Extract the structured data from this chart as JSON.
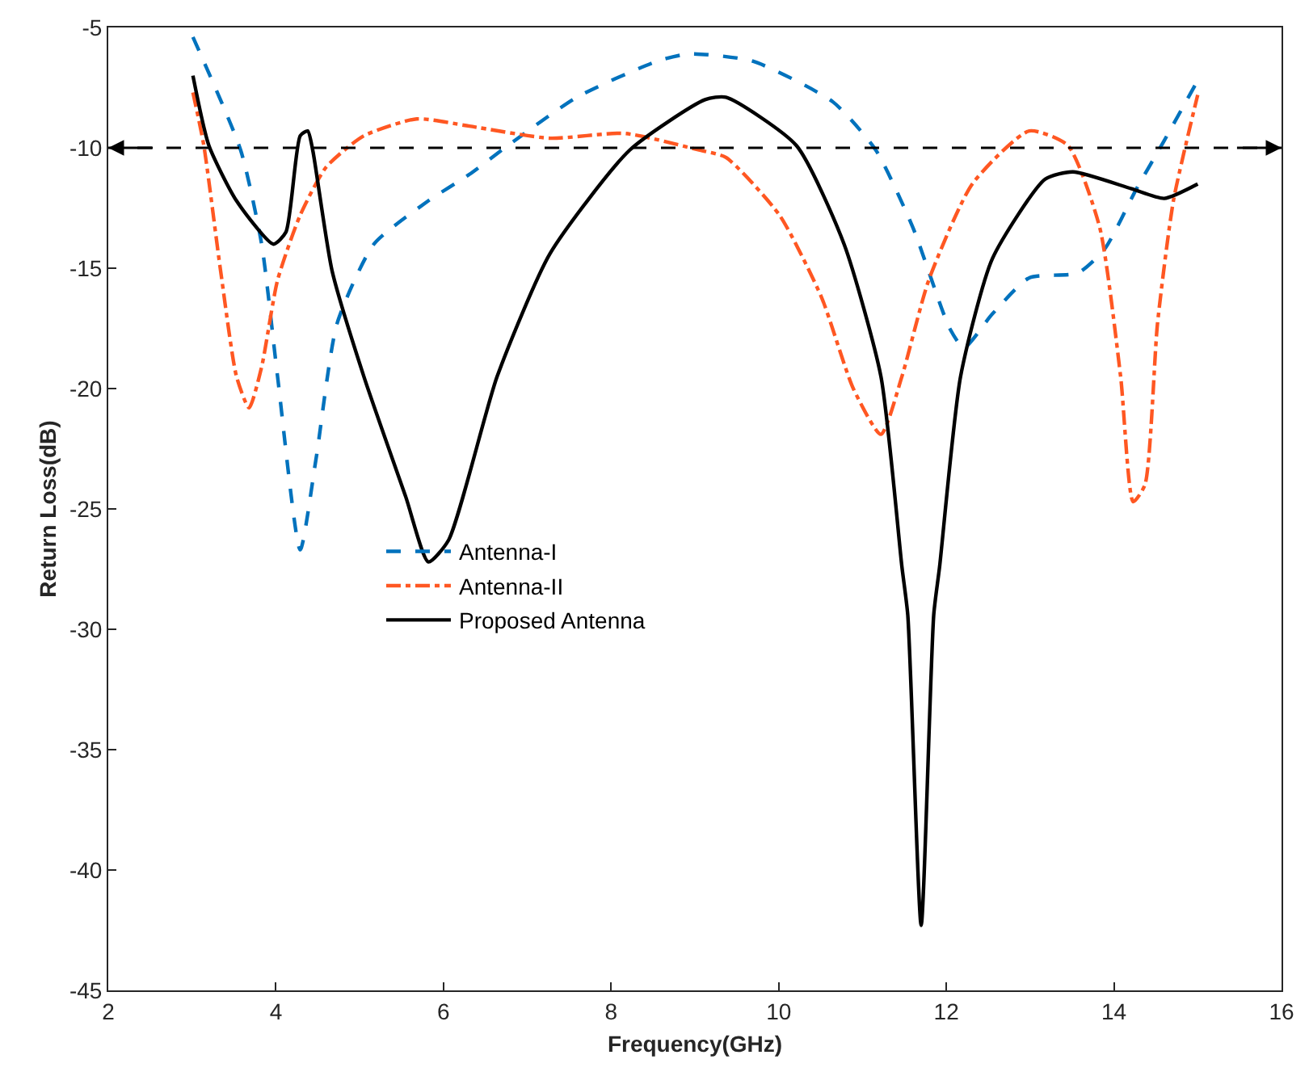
{
  "chart_data": {
    "type": "line",
    "xlabel": "Frequency(GHz)",
    "ylabel": "Return Loss(dB)",
    "xlim": [
      2,
      16
    ],
    "xticks": [
      2,
      4,
      6,
      8,
      10,
      12,
      14,
      16
    ],
    "ylim": [
      -45,
      -5
    ],
    "yticks": [
      -45,
      -40,
      -35,
      -30,
      -25,
      -20,
      -15,
      -10,
      -5
    ],
    "grid": false,
    "legend": "center left",
    "marker": "none",
    "ref_lines": [
      {
        "axis": "y",
        "value": -10,
        "color": "#000000",
        "line_style": "dashed"
      }
    ],
    "series": [
      {
        "name": "Antenna-I",
        "color": "#0072bd",
        "line_style": "dashed",
        "x": [
          3.01,
          3.58,
          3.83,
          4.02,
          4.29,
          4.48,
          4.73,
          5.17,
          5.82,
          6.31,
          6.77,
          7.59,
          8.55,
          8.93,
          9.69,
          10.65,
          11.16,
          11.6,
          12.04,
          12.21,
          12.55,
          12.99,
          13.57,
          13.89,
          14.27,
          14.6,
          15.0
        ],
        "values": [
          -5.4,
          -10.1,
          -14.0,
          -19.5,
          -26.7,
          -22.9,
          -17.3,
          -14.0,
          -12.2,
          -11.1,
          -9.9,
          -7.9,
          -6.4,
          -6.1,
          -6.4,
          -8.1,
          -10.1,
          -13.3,
          -17.5,
          -18.3,
          -16.9,
          -15.4,
          -15.2,
          -14.2,
          -11.7,
          -9.7,
          -7.2
        ]
      },
      {
        "name": "Antenna-II",
        "color": "#ff5722",
        "line_style": "dashdot",
        "x": [
          3.01,
          3.14,
          3.34,
          3.53,
          3.68,
          3.83,
          4.02,
          4.29,
          4.6,
          5.05,
          5.68,
          6.31,
          7.27,
          8.16,
          9.06,
          9.37,
          10.01,
          10.51,
          10.89,
          11.22,
          11.47,
          11.79,
          12.31,
          12.99,
          13.45,
          13.83,
          14.08,
          14.23,
          14.37,
          14.52,
          14.71,
          15.0
        ],
        "values": [
          -7.7,
          -9.9,
          -15.1,
          -19.5,
          -20.8,
          -19.1,
          -15.5,
          -12.8,
          -10.8,
          -9.5,
          -8.8,
          -9.1,
          -9.6,
          -9.4,
          -10.1,
          -10.4,
          -12.8,
          -16.2,
          -20.0,
          -21.9,
          -19.5,
          -15.5,
          -11.5,
          -9.3,
          -9.9,
          -13.3,
          -19.5,
          -24.7,
          -24.0,
          -17.3,
          -12.2,
          -7.8
        ]
      },
      {
        "name": "Proposed Antenna",
        "color": "#000000",
        "line_style": "solid",
        "x": [
          3.01,
          3.2,
          3.53,
          3.97,
          4.12,
          4.29,
          4.38,
          4.44,
          4.67,
          5.05,
          5.55,
          5.82,
          6.06,
          6.64,
          7.27,
          8.22,
          9.12,
          9.37,
          10.21,
          10.78,
          11.22,
          11.47,
          11.54,
          11.7,
          11.85,
          11.92,
          12.17,
          12.55,
          13.18,
          13.51,
          14.21,
          14.6,
          15.0
        ],
        "values": [
          -7.0,
          -9.9,
          -12.2,
          -14.0,
          -13.5,
          -9.5,
          -9.3,
          -10.1,
          -15.1,
          -19.5,
          -24.5,
          -27.2,
          -26.3,
          -19.5,
          -14.4,
          -10.1,
          -8.0,
          -7.9,
          -9.9,
          -14.0,
          -19.5,
          -27.4,
          -29.4,
          -42.3,
          -29.4,
          -27.4,
          -19.5,
          -14.6,
          -11.3,
          -11.0,
          -11.7,
          -12.1,
          -11.5
        ]
      }
    ]
  }
}
